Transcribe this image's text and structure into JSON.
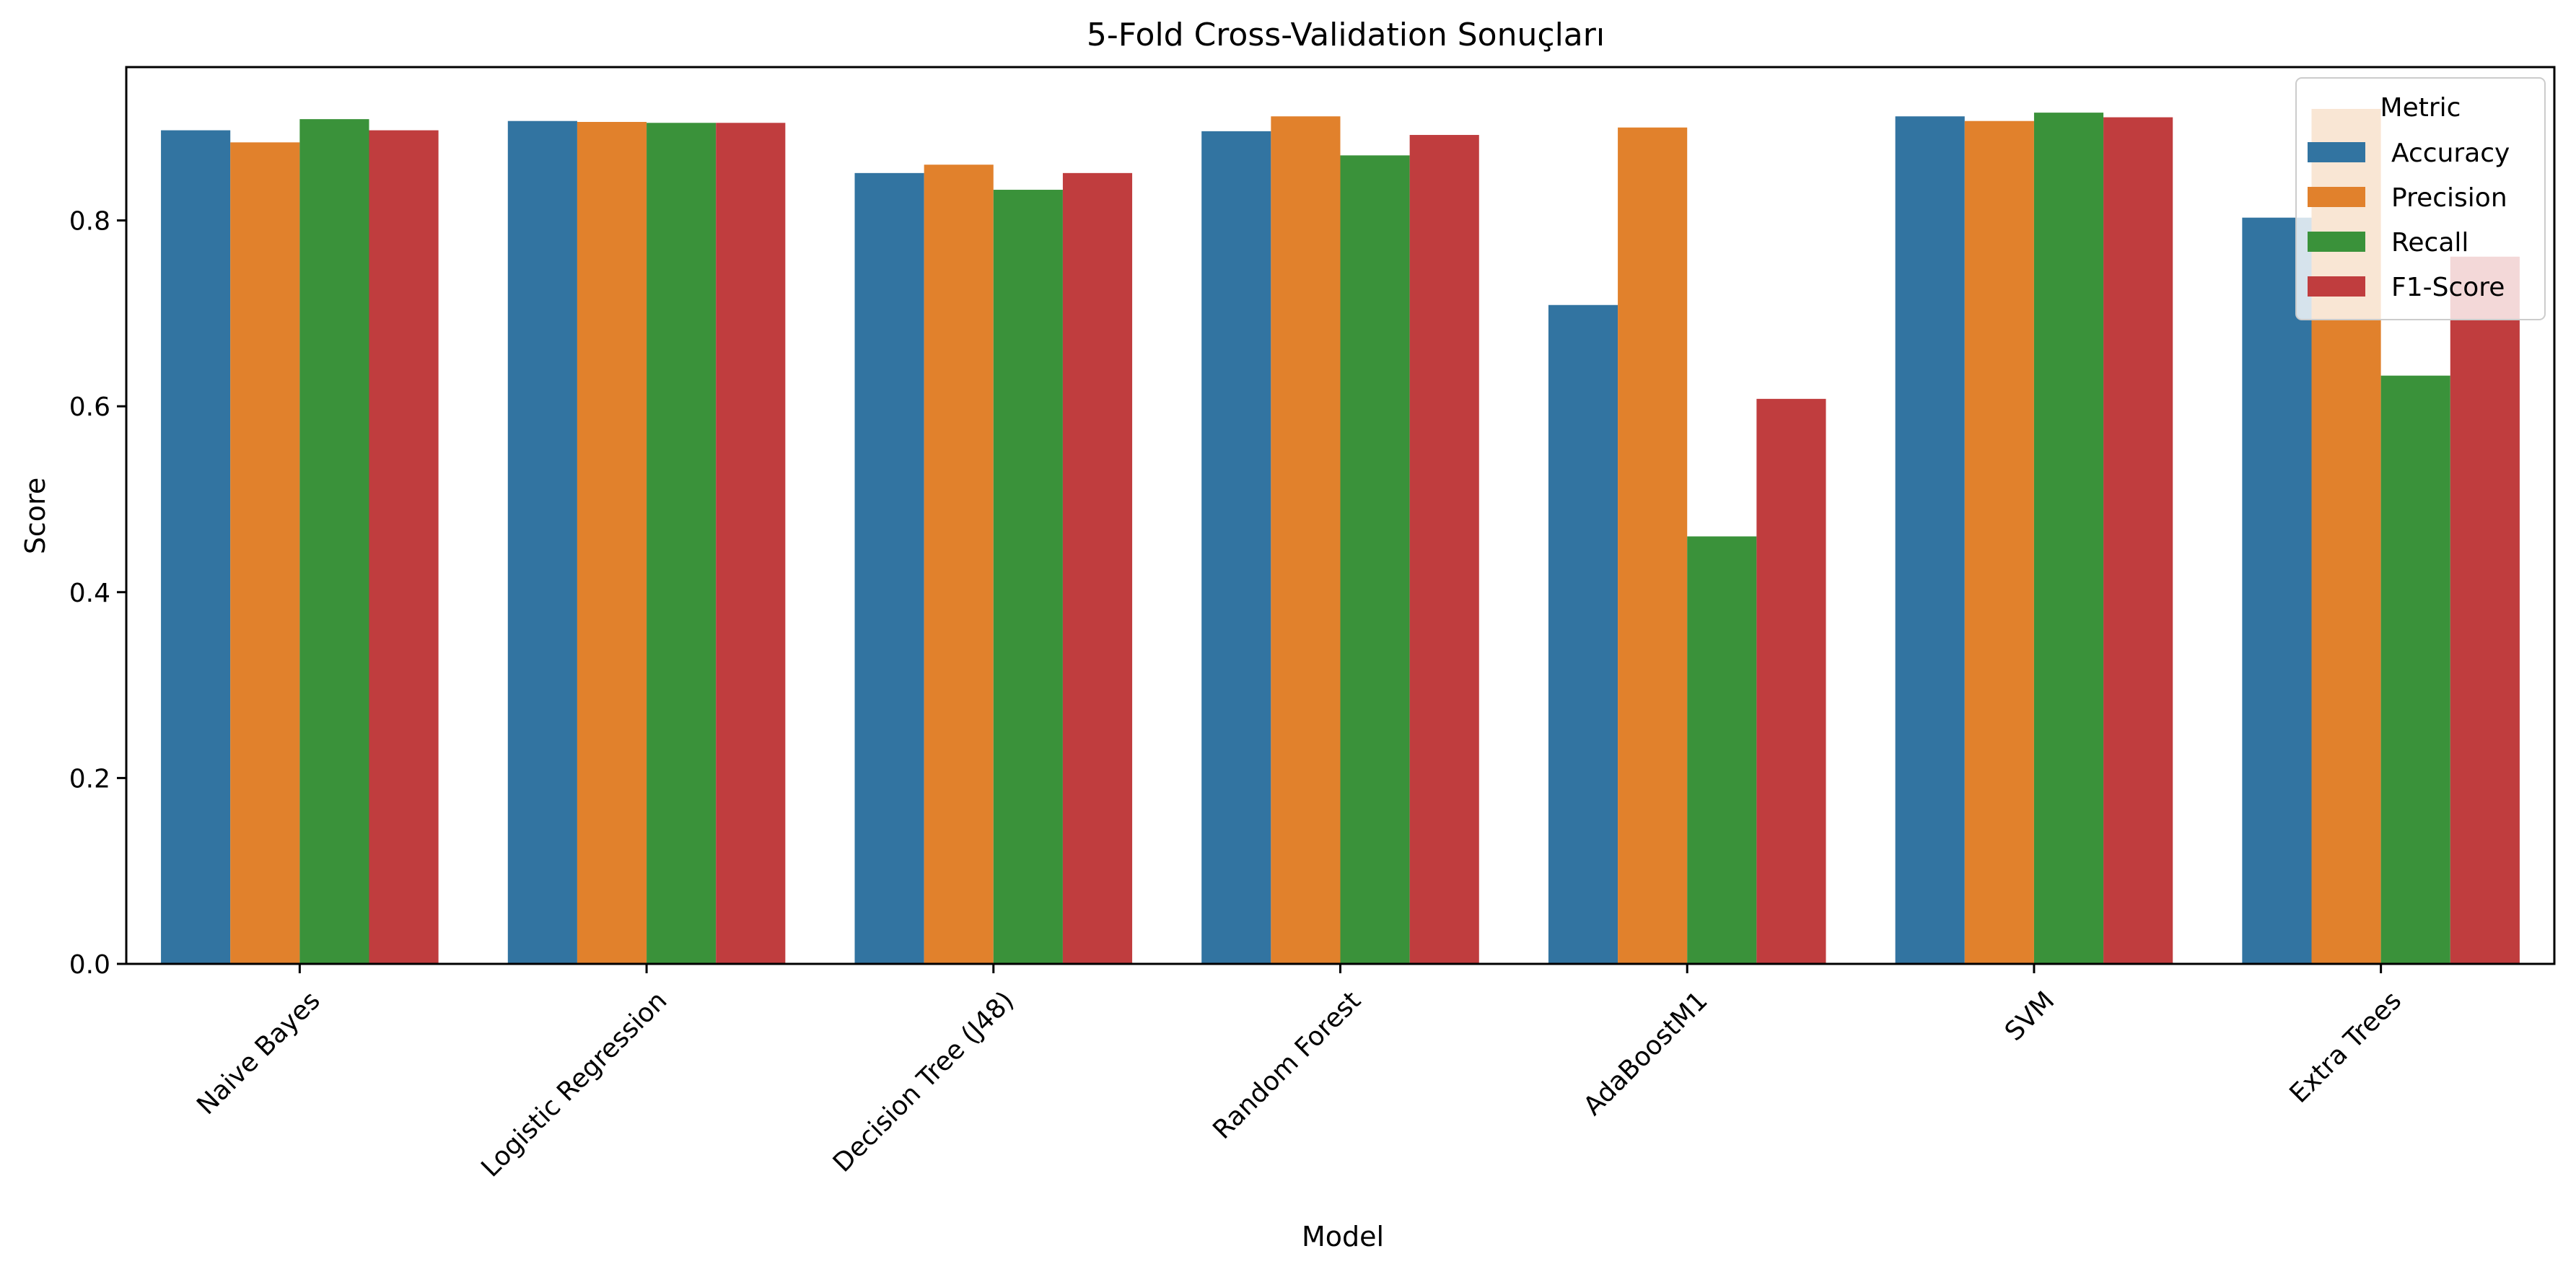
{
  "chart_data": {
    "type": "bar",
    "title": "5-Fold Cross-Validation Sonuçları",
    "xlabel": "Model",
    "ylabel": "Score",
    "ylim": [
      0,
      0.965
    ],
    "yticks": [
      "0.0",
      "0.2",
      "0.4",
      "0.6",
      "0.8"
    ],
    "grid": false,
    "legend": {
      "title": "Metric",
      "position": "top-right"
    },
    "categories": [
      "Naive Bayes",
      "Logistic Regression",
      "Decision Tree (J48)",
      "Random Forest",
      "AdaBoostM1",
      "SVM",
      "Extra Trees"
    ],
    "series": [
      {
        "name": "Accuracy",
        "color": "#3274a1",
        "values": [
          0.897,
          0.907,
          0.851,
          0.896,
          0.709,
          0.912,
          0.803
        ]
      },
      {
        "name": "Precision",
        "color": "#e1812c",
        "values": [
          0.884,
          0.906,
          0.86,
          0.912,
          0.9,
          0.907,
          0.92
        ]
      },
      {
        "name": "Recall",
        "color": "#3a923a",
        "values": [
          0.909,
          0.905,
          0.833,
          0.87,
          0.46,
          0.916,
          0.633
        ]
      },
      {
        "name": "F1-Score",
        "color": "#c03d3e",
        "values": [
          0.897,
          0.905,
          0.851,
          0.892,
          0.608,
          0.911,
          0.761
        ]
      }
    ]
  }
}
